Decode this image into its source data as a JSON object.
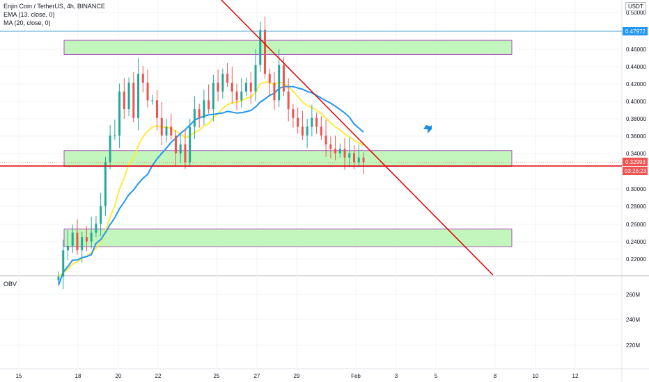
{
  "legend": {
    "symbol": "Enjin Coin / TetherUS, 4h, BINANCE",
    "ema": "EMA (13, close, 0)",
    "ma": "MA (20, close, 0)"
  },
  "obv_label": "OBV",
  "currency": "USDT",
  "colors": {
    "up": "#26a69a",
    "down": "#ef5350",
    "ema": "#ffeb3b",
    "ma": "#2196f3",
    "zone_fill": "#b7f5b0",
    "zone_border": "#9c27b0",
    "trendline": "#e00000",
    "horizontal_blue": "#4aa3c8",
    "rocket": "#1e88e5"
  },
  "price_axis_labels": [
    "0.50000",
    "0.46000",
    "0.44000",
    "0.42000",
    "0.40000",
    "0.38000",
    "0.36000",
    "0.34000",
    "0.30000",
    "0.28000",
    "0.26000",
    "0.24000",
    "0.22000"
  ],
  "obv_axis_labels": [
    "260M",
    "240M",
    "220M"
  ],
  "badges": {
    "blue_level": "0.47972",
    "last_price": "0.32993",
    "countdown": "03:26:23"
  },
  "time_axis_labels": [
    "15",
    "18",
    "20",
    "22",
    "25",
    "27",
    "29",
    "Feb",
    "3",
    "5",
    "8",
    "10",
    "12"
  ],
  "chart_data": {
    "type": "candlestick",
    "symbol": "ENJ/USDT",
    "timeframe": "4h",
    "exchange": "BINANCE",
    "y_range": [
      0.205,
      0.505
    ],
    "last_price": 0.32993,
    "marked_level": 0.47972,
    "support_resistance_zones": [
      {
        "low": 0.452,
        "high": 0.468
      },
      {
        "low": 0.325,
        "high": 0.343
      },
      {
        "low": 0.234,
        "high": 0.254
      }
    ],
    "indicators": [
      "EMA (13, close, 0)",
      "MA (20, close, 0)",
      "OBV"
    ],
    "approx_closes": [
      0.2,
      0.23,
      0.235,
      0.25,
      0.23,
      0.245,
      0.24,
      0.25,
      0.26,
      0.28,
      0.33,
      0.36,
      0.36,
      0.41,
      0.39,
      0.42,
      0.38,
      0.43,
      0.42,
      0.4,
      0.4,
      0.38,
      0.36,
      0.37,
      0.36,
      0.34,
      0.35,
      0.33,
      0.37,
      0.39,
      0.38,
      0.4,
      0.39,
      0.42,
      0.41,
      0.43,
      0.42,
      0.41,
      0.4,
      0.41,
      0.42,
      0.41,
      0.44,
      0.48,
      0.43,
      0.42,
      0.4,
      0.44,
      0.41,
      0.39,
      0.38,
      0.37,
      0.36,
      0.37,
      0.38,
      0.37,
      0.36,
      0.35,
      0.345,
      0.34,
      0.345,
      0.335,
      0.34,
      0.33,
      0.335,
      0.33
    ]
  }
}
